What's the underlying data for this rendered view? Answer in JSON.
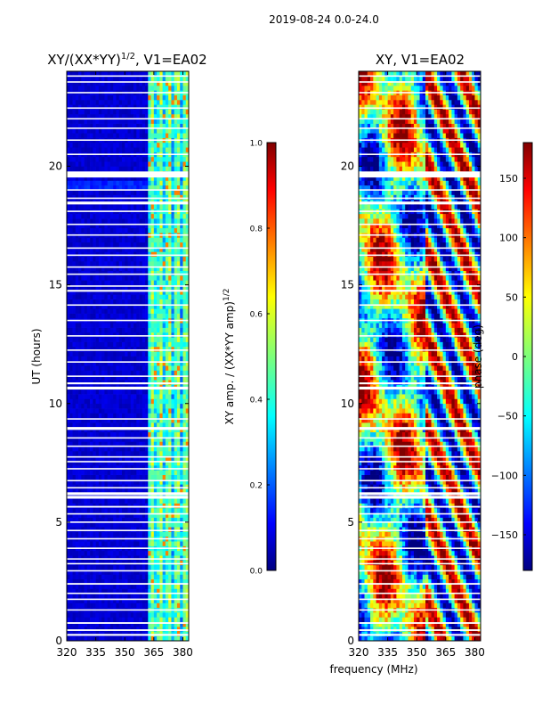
{
  "figure": {
    "suptitle": "2019-08-24 0.0-24.0",
    "common_xlabel": "frequency (MHz)"
  },
  "chart_data": [
    {
      "type": "heatmap",
      "id": "amp",
      "title": "XY/(XX*YY)",
      "title_sup": "1/2",
      "title_suffix": ", V1=EA02",
      "xlabel": "frequency (MHz)",
      "ylabel": "UT (hours)",
      "xlim": [
        320,
        383
      ],
      "ylim": [
        0,
        24
      ],
      "xticks": [
        320,
        335,
        350,
        365,
        380
      ],
      "yticks": [
        0,
        5,
        10,
        15,
        20
      ],
      "colorbar": {
        "label": "XY amp. / (XX*YY amp)",
        "label_sup": "1/2",
        "range": [
          0.0,
          1.0
        ],
        "ticks": [
          "0.0",
          "0.2",
          "0.4",
          "0.6",
          "0.8",
          "1.0"
        ],
        "tick_values": [
          0.0,
          0.2,
          0.4,
          0.6,
          0.8,
          1.0
        ],
        "colormap": "jet"
      },
      "active_band_mhz": [
        362,
        383
      ],
      "typical_value_outside_band": 0.05,
      "typical_value_in_band": 0.3,
      "peak_value": 0.75
    },
    {
      "type": "heatmap",
      "id": "phase",
      "title": "XY, V1=EA02",
      "xlabel": "frequency (MHz)",
      "ylabel": "",
      "xlim": [
        320,
        383
      ],
      "ylim": [
        0,
        24
      ],
      "xticks": [
        320,
        335,
        350,
        365,
        380
      ],
      "yticks": [
        0,
        5,
        10,
        15,
        20
      ],
      "colorbar": {
        "label": "phase (deg)",
        "range": [
          -180,
          180
        ],
        "ticks": [
          "−150",
          "−100",
          "−50",
          "0",
          "50",
          "100",
          "150"
        ],
        "tick_values": [
          -150,
          -100,
          -50,
          0,
          50,
          100,
          150
        ],
        "colormap": "jet"
      }
    }
  ],
  "flagged_hours": [
    0.25,
    0.45,
    0.75,
    1.3,
    1.75,
    2.0,
    2.4,
    2.95,
    3.25,
    3.45,
    3.9,
    4.3,
    4.65,
    5.0,
    5.35,
    5.65,
    6.05,
    6.2,
    6.45,
    6.75,
    7.25,
    7.55,
    7.75,
    8.2,
    8.55,
    8.95,
    9.35,
    10.65,
    10.85,
    11.15,
    11.75,
    12.25,
    12.85,
    13.5,
    14.15,
    14.75,
    14.95,
    15.45,
    15.75,
    16.25,
    16.55,
    17.1,
    17.55,
    18.1,
    18.45,
    18.65,
    19.0,
    19.65,
    19.75,
    20.5,
    21.1,
    21.6,
    22.0,
    22.45,
    23.1,
    23.55,
    23.8
  ],
  "flagged_hour_widths": [
    0.08,
    0.07,
    0.07,
    0.06,
    0.06,
    0.06,
    0.07,
    0.06,
    0.06,
    0.06,
    0.06,
    0.06,
    0.06,
    0.06,
    0.06,
    0.07,
    0.12,
    0.12,
    0.06,
    0.06,
    0.06,
    0.06,
    0.06,
    0.06,
    0.06,
    0.12,
    0.06,
    0.12,
    0.08,
    0.06,
    0.06,
    0.06,
    0.06,
    0.06,
    0.06,
    0.08,
    0.06,
    0.06,
    0.06,
    0.06,
    0.06,
    0.06,
    0.06,
    0.06,
    0.12,
    0.06,
    0.06,
    0.25,
    0.06,
    0.06,
    0.06,
    0.06,
    0.06,
    0.06,
    0.06,
    0.06,
    0.06
  ]
}
